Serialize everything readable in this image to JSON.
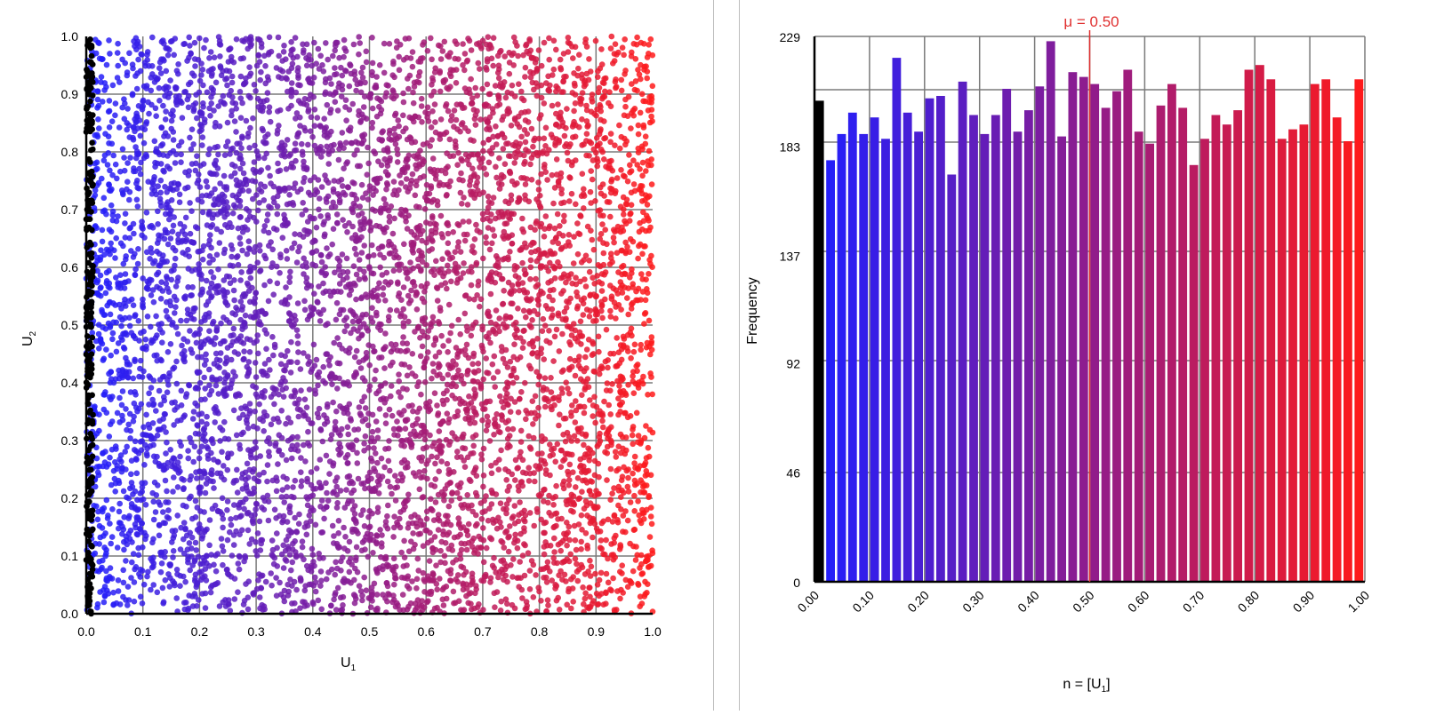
{
  "scatter": {
    "xlabel": "U",
    "xlabel_sub": "1",
    "ylabel": "U",
    "ylabel_sub": "2",
    "xticks": [
      "0.0",
      "0.1",
      "0.2",
      "0.3",
      "0.4",
      "0.5",
      "0.6",
      "0.7",
      "0.8",
      "0.9",
      "1.0"
    ],
    "yticks": [
      "0.0",
      "0.1",
      "0.2",
      "0.3",
      "0.4",
      "0.5",
      "0.6",
      "0.7",
      "0.8",
      "0.9",
      "1.0"
    ]
  },
  "histogram": {
    "ylabel": "Frequency",
    "xlabel": "n = [U",
    "xlabel_sub": "1",
    "xlabel_end": "]",
    "mean_label": "μ = 0.50",
    "yticks": [
      "0",
      "46",
      "92",
      "137",
      "183",
      "229"
    ],
    "xticks": [
      "0.00",
      "0.10",
      "0.20",
      "0.30",
      "0.40",
      "0.50",
      "0.60",
      "0.70",
      "0.80",
      "0.90",
      "1.00"
    ]
  },
  "colors": {
    "low": "#1f1fff",
    "high": "#ff1a1a",
    "edge": "#000000",
    "grid": "#7a7a7a",
    "mean_line": "#e03030"
  },
  "chart_data": [
    {
      "type": "scatter",
      "title": "",
      "xlabel": "U1",
      "ylabel": "U2",
      "xlim": [
        0,
        1
      ],
      "ylim": [
        0,
        1
      ],
      "grid": true,
      "n_points_approx": 10000,
      "distribution": "uniform on [0,1] x [0,1]",
      "color_encoding": "blue-to-red gradient by U1; points with U1 near 0 drawn black"
    },
    {
      "type": "bar",
      "title": "",
      "xlabel": "n = [U1]",
      "ylabel": "Frequency",
      "ylim": [
        0,
        229
      ],
      "mean": 0.5,
      "bin_centers": [
        0.01,
        0.03,
        0.05,
        0.07,
        0.09,
        0.11,
        0.13,
        0.15,
        0.17,
        0.19,
        0.21,
        0.23,
        0.25,
        0.27,
        0.29,
        0.31,
        0.33,
        0.35,
        0.37,
        0.39,
        0.41,
        0.43,
        0.45,
        0.47,
        0.49,
        0.51,
        0.53,
        0.55,
        0.57,
        0.59,
        0.61,
        0.63,
        0.65,
        0.67,
        0.69,
        0.71,
        0.73,
        0.75,
        0.77,
        0.79,
        0.81,
        0.83,
        0.85,
        0.87,
        0.89,
        0.91,
        0.93,
        0.95,
        0.97,
        0.99
      ],
      "values": [
        202,
        177,
        188,
        197,
        188,
        195,
        186,
        220,
        197,
        189,
        203,
        204,
        171,
        210,
        196,
        188,
        196,
        207,
        189,
        198,
        208,
        227,
        187,
        214,
        212,
        209,
        199,
        206,
        215,
        189,
        184,
        200,
        209,
        199,
        175,
        186,
        196,
        192,
        198,
        215,
        217,
        211,
        186,
        190,
        192,
        209,
        211,
        195,
        185,
        211
      ]
    }
  ]
}
